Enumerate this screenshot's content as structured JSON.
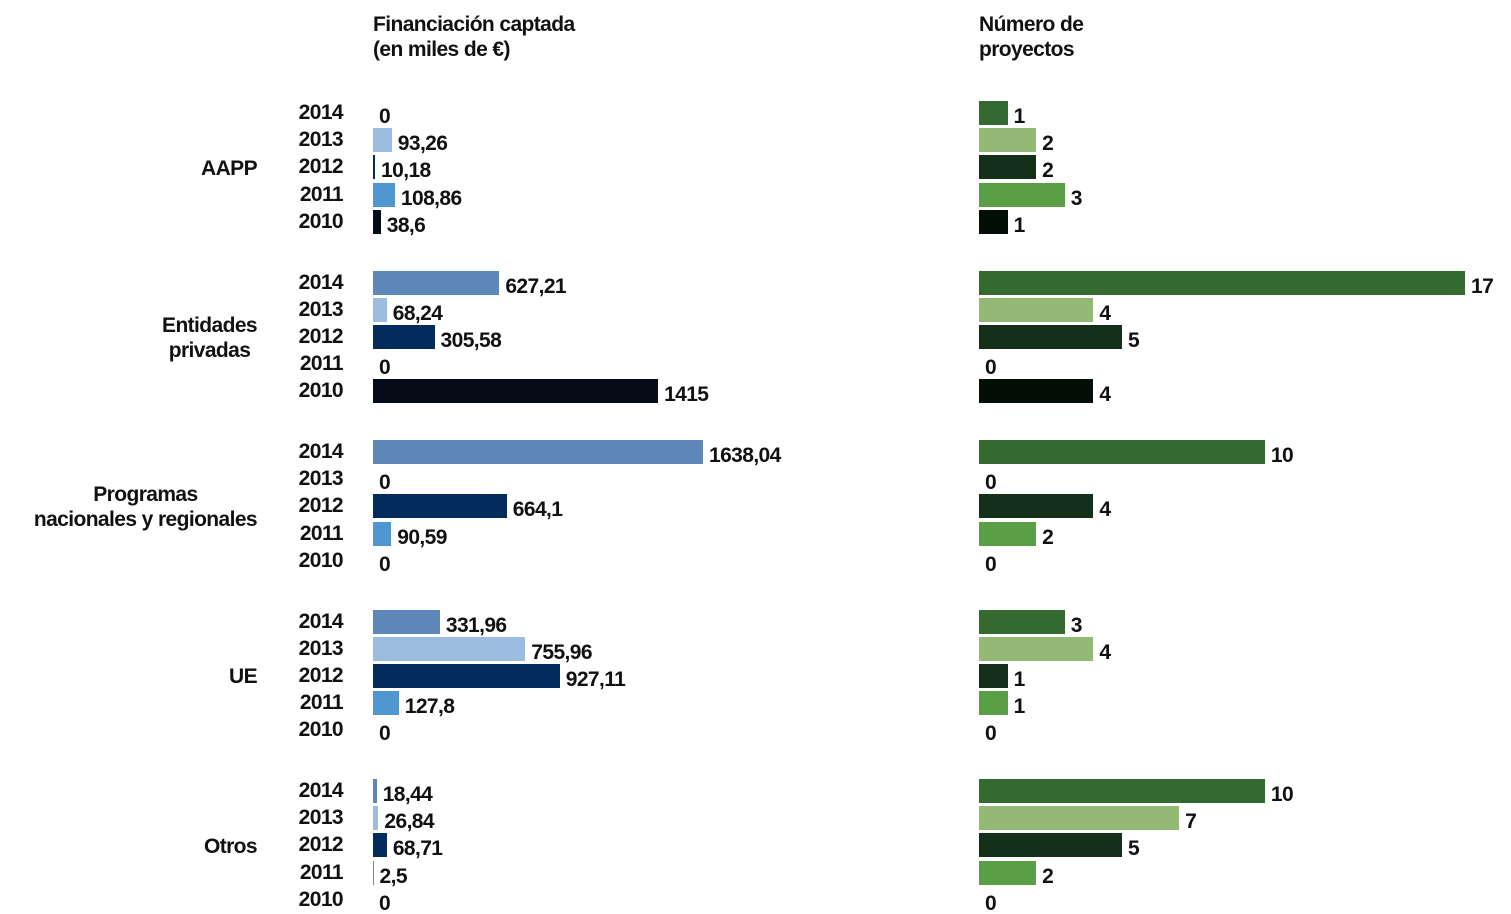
{
  "chart_data": [
    {
      "type": "bar",
      "title": "Financiación captada\n(en miles de €)",
      "categories": [
        "AAPP",
        "Entidades\nprivadas",
        "Programas\nnacionales y regionales",
        "UE",
        "Otros"
      ],
      "series": [
        {
          "name": "2014",
          "color": "#5d87b8",
          "values": [
            0,
            627.21,
            1638.04,
            331.96,
            18.44
          ],
          "value_labels": [
            "0",
            "627,21",
            "1638,04",
            "331,96",
            "18,44"
          ]
        },
        {
          "name": "2013",
          "color": "#9bbde0",
          "values": [
            93.26,
            68.24,
            0,
            755.96,
            26.84
          ],
          "value_labels": [
            "93,26",
            "68,24",
            "0",
            "755,96",
            "26,84"
          ]
        },
        {
          "name": "2012",
          "color": "#032b5e",
          "values": [
            10.18,
            305.58,
            664.1,
            927.11,
            68.71
          ],
          "value_labels": [
            "10,18",
            "305,58",
            "664,1",
            "927,11",
            "68,71"
          ]
        },
        {
          "name": "2011",
          "color": "#5096d1",
          "values": [
            108.86,
            0,
            90.59,
            127.8,
            2.5
          ],
          "value_labels": [
            "108,86",
            "0",
            "90,59",
            "127,8",
            "2,5"
          ]
        },
        {
          "name": "2010",
          "color": "#050c18",
          "values": [
            38.6,
            1415,
            0,
            0,
            0
          ],
          "value_labels": [
            "38,6",
            "1415",
            "0",
            "0",
            "0"
          ]
        }
      ]
    },
    {
      "type": "bar",
      "title": "Número de\nproyectos",
      "series": [
        {
          "color": "#346a2f",
          "values": [
            1,
            17,
            10,
            3,
            10
          ]
        },
        {
          "color": "#94b977",
          "values": [
            2,
            4,
            0,
            4,
            7
          ]
        },
        {
          "color": "#14301b",
          "values": [
            2,
            5,
            4,
            1,
            5
          ]
        },
        {
          "color": "#5a9e46",
          "values": [
            3,
            0,
            2,
            1,
            2
          ]
        },
        {
          "color": "#030f06",
          "values": [
            1,
            4,
            0,
            0,
            0
          ]
        }
      ]
    }
  ]
}
